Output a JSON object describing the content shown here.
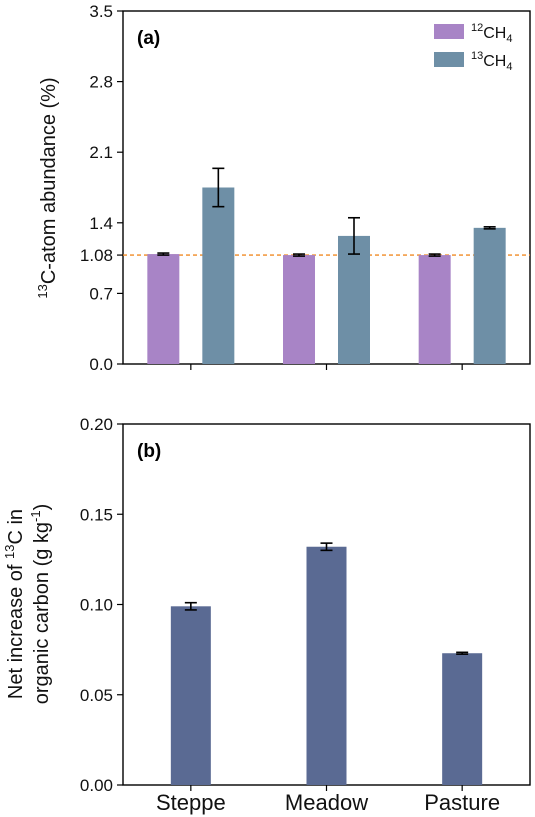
{
  "chart_data": [
    {
      "type": "bar",
      "panel_label": "(a)",
      "categories": [
        "Steppe",
        "Meadow",
        "Pasture"
      ],
      "ylabel": {
        "sup": "13",
        "text": "C-atom abundance (%)"
      },
      "ylim": [
        0.0,
        3.5
      ],
      "yticks": [
        "0.0",
        "0.7",
        "1.08",
        "1.4",
        "2.1",
        "2.8",
        "3.5"
      ],
      "reference_line": {
        "value": 1.08,
        "color": "#f08a24",
        "style": "dashed"
      },
      "legend_position": "top-right",
      "series": [
        {
          "name_base": "CH",
          "name_sup": "12",
          "name_sub": "4",
          "color": "#a884c6",
          "values": [
            1.09,
            1.08,
            1.08
          ],
          "errors": [
            0.01,
            0.01,
            0.01
          ]
        },
        {
          "name_base": "CH",
          "name_sup": "13",
          "name_sub": "4",
          "color": "#6e8fa6",
          "values": [
            1.75,
            1.27,
            1.35
          ],
          "errors": [
            0.19,
            0.18,
            0.01
          ]
        }
      ]
    },
    {
      "type": "bar",
      "panel_label": "(b)",
      "categories": [
        "Steppe",
        "Meadow",
        "Pasture"
      ],
      "ylabel_line1": {
        "pre": "Net increase of ",
        "sup": "13",
        "post": "C in"
      },
      "ylabel_line2": {
        "pre": "organic carbon (g kg",
        "sup": "-1",
        "post": ")"
      },
      "ylim": [
        0.0,
        0.2
      ],
      "yticks": [
        "0.00",
        "0.05",
        "0.10",
        "0.15",
        "0.20"
      ],
      "series": [
        {
          "color": "#5a6a93",
          "values": [
            0.099,
            0.132,
            0.073
          ],
          "errors": [
            0.002,
            0.002,
            0.0005
          ]
        }
      ]
    }
  ]
}
